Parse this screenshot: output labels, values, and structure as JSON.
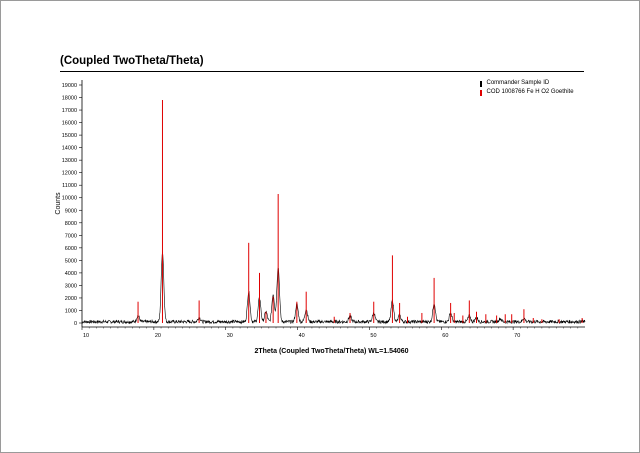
{
  "title": "(Coupled TwoTheta/Theta)",
  "chart_data": {
    "type": "line",
    "title": "(Coupled TwoTheta/Theta)",
    "xlabel": "2Theta (Coupled TwoTheta/Theta) WL=1.54060",
    "ylabel": "Counts",
    "xlim": [
      10,
      80
    ],
    "ylim": [
      -500,
      19500
    ],
    "x_ticks": [
      10,
      20,
      30,
      40,
      50,
      60,
      70
    ],
    "y_ticks": [
      0,
      1000,
      2000,
      3000,
      4000,
      5000,
      6000,
      7000,
      8000,
      9000,
      10000,
      11000,
      12000,
      13000,
      14000,
      15000,
      16000,
      17000,
      18000,
      19000
    ],
    "legend_position": "top-right",
    "series": [
      {
        "name": "Commander Sample ID",
        "color": "#000000",
        "style": "continuous-noisy",
        "baseline": 100,
        "peaks": [
          {
            "x": 17.8,
            "y": 500
          },
          {
            "x": 21.2,
            "y": 5600
          },
          {
            "x": 26.3,
            "y": 350
          },
          {
            "x": 33.2,
            "y": 2400
          },
          {
            "x": 34.7,
            "y": 1900
          },
          {
            "x": 35.6,
            "y": 800
          },
          {
            "x": 36.6,
            "y": 2200
          },
          {
            "x": 37.3,
            "y": 4400
          },
          {
            "x": 39.9,
            "y": 1400
          },
          {
            "x": 41.2,
            "y": 1000
          },
          {
            "x": 47.3,
            "y": 450
          },
          {
            "x": 50.6,
            "y": 700
          },
          {
            "x": 53.2,
            "y": 1700
          },
          {
            "x": 54.2,
            "y": 500
          },
          {
            "x": 59.0,
            "y": 1500
          },
          {
            "x": 61.3,
            "y": 700
          },
          {
            "x": 63.9,
            "y": 450
          },
          {
            "x": 64.9,
            "y": 350
          },
          {
            "x": 68.2,
            "y": 250
          },
          {
            "x": 71.5,
            "y": 280
          }
        ]
      },
      {
        "name": "COD 1008766 Fe H O2 Goethite",
        "color": "#e00000",
        "style": "sticks",
        "sticks": [
          {
            "x": 17.8,
            "y": 1700
          },
          {
            "x": 21.2,
            "y": 17800
          },
          {
            "x": 26.3,
            "y": 1800
          },
          {
            "x": 33.2,
            "y": 6400
          },
          {
            "x": 34.7,
            "y": 4000
          },
          {
            "x": 35.6,
            "y": 900
          },
          {
            "x": 36.6,
            "y": 2100
          },
          {
            "x": 37.3,
            "y": 10300
          },
          {
            "x": 39.9,
            "y": 1700
          },
          {
            "x": 41.2,
            "y": 2500
          },
          {
            "x": 45.1,
            "y": 500
          },
          {
            "x": 47.3,
            "y": 800
          },
          {
            "x": 50.6,
            "y": 1700
          },
          {
            "x": 53.2,
            "y": 5400
          },
          {
            "x": 54.2,
            "y": 1600
          },
          {
            "x": 55.3,
            "y": 500
          },
          {
            "x": 57.3,
            "y": 800
          },
          {
            "x": 59.0,
            "y": 3600
          },
          {
            "x": 61.3,
            "y": 1600
          },
          {
            "x": 61.8,
            "y": 800
          },
          {
            "x": 63.0,
            "y": 600
          },
          {
            "x": 63.9,
            "y": 1800
          },
          {
            "x": 64.9,
            "y": 900
          },
          {
            "x": 66.2,
            "y": 700
          },
          {
            "x": 67.7,
            "y": 600
          },
          {
            "x": 68.9,
            "y": 700
          },
          {
            "x": 69.8,
            "y": 700
          },
          {
            "x": 71.5,
            "y": 1100
          },
          {
            "x": 72.8,
            "y": 400
          },
          {
            "x": 74.0,
            "y": 300
          },
          {
            "x": 76.4,
            "y": 300
          },
          {
            "x": 79.6,
            "y": 400
          }
        ]
      }
    ]
  }
}
